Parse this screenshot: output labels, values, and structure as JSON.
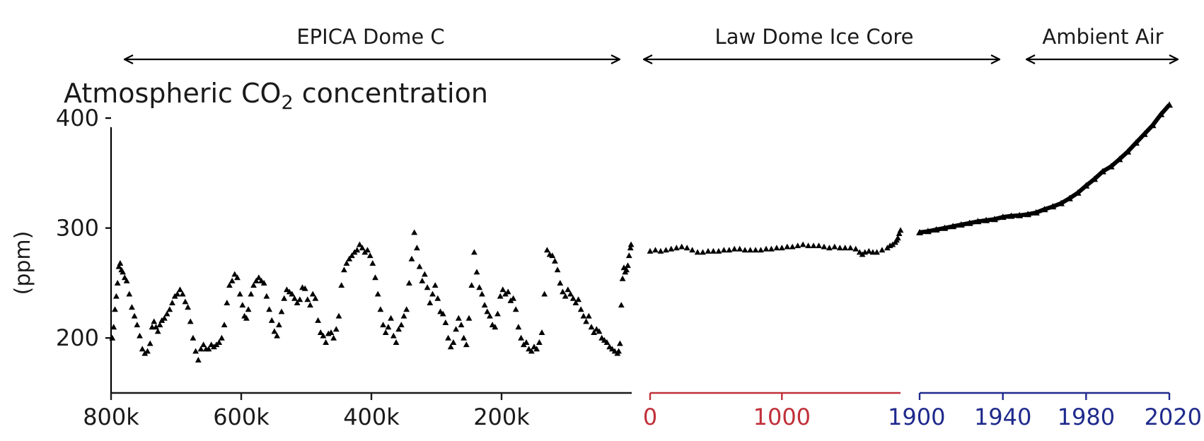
{
  "chart_data": {
    "type": "scatter",
    "title": {
      "prefix": "Atmospheric CO",
      "subscript": "2",
      "suffix": " concentration"
    },
    "ylabel": "(ppm)",
    "ylim": [
      150,
      420
    ],
    "yticks": [
      200,
      300,
      400
    ],
    "marker": "triangle",
    "colors": {
      "points": "#000000",
      "axis": "#1a1a1a",
      "law_dome_axis": "#c0303a",
      "ambient_axis": "#1f2a8c"
    },
    "panels": [
      {
        "name": "EPICA Dome C",
        "x_unit": "years before present",
        "xlim": [
          800000,
          0
        ],
        "xticks": [
          800000,
          600000,
          400000,
          200000
        ],
        "xtick_labels": [
          "800k",
          "600k",
          "400k",
          "200k"
        ],
        "points": [
          [
            798000,
            200
          ],
          [
            796000,
            210
          ],
          [
            794000,
            226
          ],
          [
            792000,
            238
          ],
          [
            790000,
            250
          ],
          [
            788000,
            265
          ],
          [
            786000,
            268
          ],
          [
            784000,
            262
          ],
          [
            782000,
            260
          ],
          [
            779000,
            255
          ],
          [
            776000,
            252
          ],
          [
            772000,
            240
          ],
          [
            768000,
            228
          ],
          [
            764000,
            220
          ],
          [
            760000,
            212
          ],
          [
            756000,
            202
          ],
          [
            752000,
            190
          ],
          [
            748000,
            186
          ],
          [
            744000,
            188
          ],
          [
            740000,
            195
          ],
          [
            737000,
            210
          ],
          [
            734000,
            215
          ],
          [
            731000,
            210
          ],
          [
            728000,
            206
          ],
          [
            725000,
            212
          ],
          [
            722000,
            216
          ],
          [
            718000,
            218
          ],
          [
            714000,
            222
          ],
          [
            710000,
            226
          ],
          [
            706000,
            232
          ],
          [
            702000,
            238
          ],
          [
            698000,
            240
          ],
          [
            694000,
            244
          ],
          [
            690000,
            240
          ],
          [
            686000,
            233
          ],
          [
            682000,
            228
          ],
          [
            678000,
            215
          ],
          [
            674000,
            200
          ],
          [
            670000,
            188
          ],
          [
            666000,
            180
          ],
          [
            662000,
            190
          ],
          [
            658000,
            194
          ],
          [
            654000,
            190
          ],
          [
            650000,
            190
          ],
          [
            646000,
            194
          ],
          [
            642000,
            192
          ],
          [
            638000,
            194
          ],
          [
            634000,
            196
          ],
          [
            630000,
            200
          ],
          [
            626000,
            212
          ],
          [
            622000,
            232
          ],
          [
            618000,
            248
          ],
          [
            614000,
            252
          ],
          [
            610000,
            258
          ],
          [
            606000,
            255
          ],
          [
            602000,
            240
          ],
          [
            598000,
            230
          ],
          [
            595000,
            220
          ],
          [
            592000,
            218
          ],
          [
            589000,
            226
          ],
          [
            585000,
            240
          ],
          [
            581000,
            248
          ],
          [
            577000,
            252
          ],
          [
            573000,
            255
          ],
          [
            569000,
            252
          ],
          [
            565000,
            250
          ],
          [
            561000,
            238
          ],
          [
            557000,
            226
          ],
          [
            553000,
            216
          ],
          [
            549000,
            206
          ],
          [
            545000,
            202
          ],
          [
            542000,
            212
          ],
          [
            538000,
            224
          ],
          [
            534000,
            236
          ],
          [
            530000,
            244
          ],
          [
            526000,
            242
          ],
          [
            522000,
            240
          ],
          [
            518000,
            236
          ],
          [
            514000,
            232
          ],
          [
            510000,
            235
          ],
          [
            506000,
            246
          ],
          [
            502000,
            245
          ],
          [
            498000,
            235
          ],
          [
            494000,
            230
          ],
          [
            490000,
            240
          ],
          [
            486000,
            236
          ],
          [
            482000,
            216
          ],
          [
            478000,
            205
          ],
          [
            474000,
            202
          ],
          [
            470000,
            196
          ],
          [
            466000,
            204
          ],
          [
            462000,
            205
          ],
          [
            458000,
            200
          ],
          [
            454000,
            208
          ],
          [
            450000,
            220
          ],
          [
            446000,
            248
          ],
          [
            442000,
            262
          ],
          [
            438000,
            268
          ],
          [
            434000,
            272
          ],
          [
            430000,
            275
          ],
          [
            426000,
            278
          ],
          [
            422000,
            280
          ],
          [
            418000,
            285
          ],
          [
            414000,
            282
          ],
          [
            410000,
            278
          ],
          [
            406000,
            280
          ],
          [
            402000,
            275
          ],
          [
            398000,
            268
          ],
          [
            394000,
            255
          ],
          [
            390000,
            240
          ],
          [
            386000,
            226
          ],
          [
            382000,
            212
          ],
          [
            378000,
            205
          ],
          [
            374000,
            210
          ],
          [
            370000,
            218
          ],
          [
            366000,
            202
          ],
          [
            362000,
            196
          ],
          [
            358000,
            208
          ],
          [
            354000,
            212
          ],
          [
            350000,
            220
          ],
          [
            346000,
            226
          ],
          [
            342000,
            250
          ],
          [
            338000,
            272
          ],
          [
            334000,
            296
          ],
          [
            330000,
            282
          ],
          [
            326000,
            265
          ],
          [
            322000,
            252
          ],
          [
            318000,
            258
          ],
          [
            314000,
            246
          ],
          [
            310000,
            232
          ],
          [
            306000,
            240
          ],
          [
            302000,
            248
          ],
          [
            298000,
            236
          ],
          [
            294000,
            224
          ],
          [
            290000,
            222
          ],
          [
            286000,
            214
          ],
          [
            282000,
            200
          ],
          [
            278000,
            192
          ],
          [
            274000,
            196
          ],
          [
            270000,
            208
          ],
          [
            266000,
            218
          ],
          [
            262000,
            212
          ],
          [
            258000,
            200
          ],
          [
            254000,
            194
          ],
          [
            250000,
            218
          ],
          [
            246000,
            248
          ],
          [
            242000,
            278
          ],
          [
            238000,
            260
          ],
          [
            234000,
            246
          ],
          [
            230000,
            240
          ],
          [
            226000,
            230
          ],
          [
            222000,
            224
          ],
          [
            218000,
            220
          ],
          [
            214000,
            212
          ],
          [
            210000,
            210
          ],
          [
            206000,
            222
          ],
          [
            202000,
            238
          ],
          [
            198000,
            244
          ],
          [
            194000,
            240
          ],
          [
            190000,
            242
          ],
          [
            186000,
            234
          ],
          [
            182000,
            236
          ],
          [
            178000,
            226
          ],
          [
            174000,
            210
          ],
          [
            170000,
            200
          ],
          [
            166000,
            194
          ],
          [
            162000,
            196
          ],
          [
            158000,
            190
          ],
          [
            154000,
            188
          ],
          [
            150000,
            192
          ],
          [
            146000,
            190
          ],
          [
            142000,
            196
          ],
          [
            138000,
            205
          ],
          [
            134000,
            240
          ],
          [
            130000,
            280
          ],
          [
            126000,
            276
          ],
          [
            122000,
            275
          ],
          [
            118000,
            270
          ],
          [
            114000,
            262
          ],
          [
            110000,
            250
          ],
          [
            106000,
            242
          ],
          [
            102000,
            238
          ],
          [
            98000,
            244
          ],
          [
            94000,
            240
          ],
          [
            90000,
            236
          ],
          [
            86000,
            232
          ],
          [
            82000,
            235
          ],
          [
            78000,
            226
          ],
          [
            74000,
            220
          ],
          [
            70000,
            215
          ],
          [
            66000,
            220
          ],
          [
            62000,
            210
          ],
          [
            58000,
            205
          ],
          [
            54000,
            208
          ],
          [
            50000,
            206
          ],
          [
            46000,
            200
          ],
          [
            42000,
            198
          ],
          [
            38000,
            196
          ],
          [
            34000,
            192
          ],
          [
            30000,
            190
          ],
          [
            26000,
            188
          ],
          [
            22000,
            186
          ],
          [
            20000,
            188
          ],
          [
            18000,
            195
          ],
          [
            16000,
            230
          ],
          [
            14000,
            254
          ],
          [
            12000,
            264
          ],
          [
            10000,
            260
          ],
          [
            8000,
            262
          ],
          [
            6000,
            266
          ],
          [
            4000,
            275
          ],
          [
            2000,
            282
          ],
          [
            1000,
            285
          ]
        ]
      },
      {
        "name": "Law Dome Ice Core",
        "x_unit": "year CE",
        "xlim": [
          0,
          1900
        ],
        "xticks": [
          0,
          1000
        ],
        "xtick_labels": [
          "0",
          "1000"
        ],
        "points": [
          [
            0,
            279
          ],
          [
            40,
            280
          ],
          [
            80,
            279
          ],
          [
            120,
            280
          ],
          [
            160,
            281
          ],
          [
            200,
            282
          ],
          [
            240,
            283
          ],
          [
            280,
            282
          ],
          [
            320,
            280
          ],
          [
            360,
            278
          ],
          [
            400,
            278
          ],
          [
            440,
            279
          ],
          [
            480,
            279
          ],
          [
            520,
            279
          ],
          [
            560,
            280
          ],
          [
            600,
            280
          ],
          [
            640,
            281
          ],
          [
            680,
            281
          ],
          [
            720,
            280
          ],
          [
            760,
            280
          ],
          [
            800,
            280
          ],
          [
            840,
            280
          ],
          [
            880,
            281
          ],
          [
            920,
            281
          ],
          [
            960,
            282
          ],
          [
            1000,
            282
          ],
          [
            1040,
            283
          ],
          [
            1080,
            283
          ],
          [
            1120,
            284
          ],
          [
            1160,
            285
          ],
          [
            1200,
            284
          ],
          [
            1240,
            284
          ],
          [
            1280,
            284
          ],
          [
            1320,
            283
          ],
          [
            1360,
            282
          ],
          [
            1400,
            283
          ],
          [
            1440,
            282
          ],
          [
            1480,
            282
          ],
          [
            1520,
            282
          ],
          [
            1560,
            281
          ],
          [
            1590,
            278
          ],
          [
            1610,
            276
          ],
          [
            1630,
            278
          ],
          [
            1660,
            279
          ],
          [
            1690,
            278
          ],
          [
            1720,
            278
          ],
          [
            1760,
            280
          ],
          [
            1800,
            282
          ],
          [
            1820,
            284
          ],
          [
            1840,
            285
          ],
          [
            1860,
            287
          ],
          [
            1870,
            289
          ],
          [
            1880,
            291
          ],
          [
            1890,
            295
          ],
          [
            1900,
            298
          ]
        ]
      },
      {
        "name": "Ambient Air",
        "x_unit": "year",
        "xlim": [
          1900,
          2020
        ],
        "xticks": [
          1900,
          1940,
          1980,
          2020
        ],
        "xtick_labels": [
          "1900",
          "1940",
          "1980",
          "2020"
        ],
        "points": [
          [
            1900,
            296
          ],
          [
            1904,
            297
          ],
          [
            1908,
            298.5
          ],
          [
            1912,
            300
          ],
          [
            1916,
            301.5
          ],
          [
            1920,
            303
          ],
          [
            1924,
            304.5
          ],
          [
            1928,
            306
          ],
          [
            1932,
            307
          ],
          [
            1936,
            308
          ],
          [
            1940,
            310
          ],
          [
            1944,
            311
          ],
          [
            1948,
            311.5
          ],
          [
            1952,
            312.5
          ],
          [
            1956,
            314
          ],
          [
            1960,
            317
          ],
          [
            1964,
            319.5
          ],
          [
            1968,
            322.5
          ],
          [
            1972,
            327
          ],
          [
            1976,
            332
          ],
          [
            1980,
            338.5
          ],
          [
            1984,
            344.5
          ],
          [
            1988,
            351.5
          ],
          [
            1992,
            356
          ],
          [
            1996,
            362.5
          ],
          [
            2000,
            369.5
          ],
          [
            2004,
            377.5
          ],
          [
            2008,
            385.5
          ],
          [
            2012,
            393.5
          ],
          [
            2016,
            403.5
          ],
          [
            2020,
            412
          ]
        ]
      }
    ]
  }
}
